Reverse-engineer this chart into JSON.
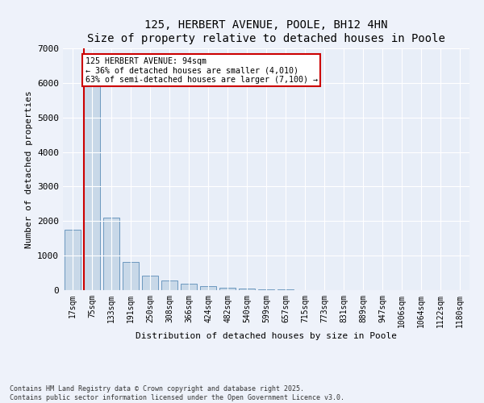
{
  "title": "125, HERBERT AVENUE, POOLE, BH12 4HN",
  "subtitle": "Size of property relative to detached houses in Poole",
  "xlabel": "Distribution of detached houses by size in Poole",
  "ylabel": "Number of detached properties",
  "categories": [
    "17sqm",
    "75sqm",
    "133sqm",
    "191sqm",
    "250sqm",
    "308sqm",
    "366sqm",
    "424sqm",
    "482sqm",
    "540sqm",
    "599sqm",
    "657sqm",
    "715sqm",
    "773sqm",
    "831sqm",
    "889sqm",
    "947sqm",
    "1006sqm",
    "1064sqm",
    "1122sqm",
    "1180sqm"
  ],
  "values": [
    1750,
    6250,
    2100,
    820,
    420,
    290,
    180,
    110,
    75,
    55,
    35,
    20,
    10,
    5,
    3,
    2,
    1,
    1,
    0,
    0,
    0
  ],
  "bar_color": "#c8d8e8",
  "bar_edge_color": "#5b8db8",
  "vline_x_index": 1,
  "vline_color": "#cc0000",
  "annotation_text": "125 HERBERT AVENUE: 94sqm\n← 36% of detached houses are smaller (4,010)\n63% of semi-detached houses are larger (7,100) →",
  "annotation_box_color": "#cc0000",
  "ylim": [
    0,
    7000
  ],
  "yticks": [
    0,
    1000,
    2000,
    3000,
    4000,
    5000,
    6000,
    7000
  ],
  "footer_line1": "Contains HM Land Registry data © Crown copyright and database right 2025.",
  "footer_line2": "Contains public sector information licensed under the Open Government Licence v3.0.",
  "bg_color": "#eef2fa",
  "plot_bg_color": "#e8eef8"
}
